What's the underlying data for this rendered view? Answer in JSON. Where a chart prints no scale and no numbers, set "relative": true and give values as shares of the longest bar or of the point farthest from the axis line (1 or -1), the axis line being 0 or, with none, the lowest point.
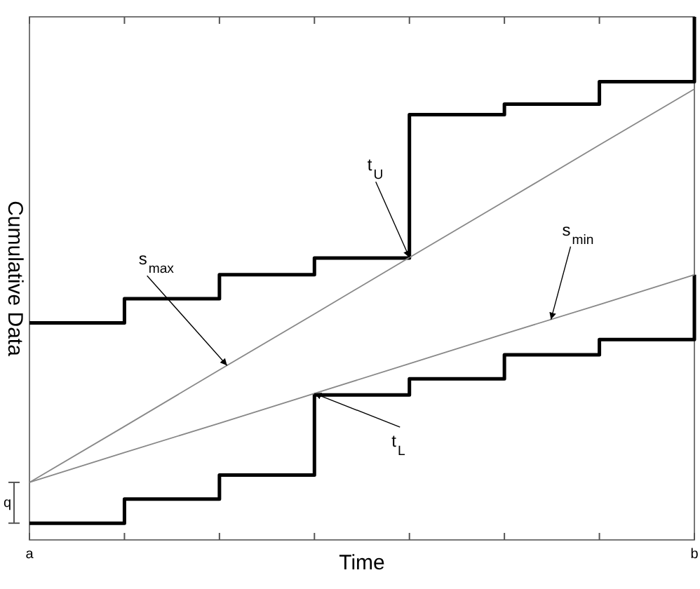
{
  "chart_data": {
    "type": "step",
    "relative": true,
    "xlabel": "Time",
    "ylabel": "Cumulative Data",
    "categories": [
      "a",
      null,
      null,
      null,
      null,
      null,
      null,
      "b"
    ],
    "line_style": "solid",
    "series": [
      {
        "color": "#000000",
        "values": [
          0.415,
          0.461,
          0.507,
          0.539,
          0.813,
          0.833,
          0.876,
          1
        ]
      },
      {
        "color": "#000000",
        "values": [
          0.032,
          0.078,
          0.124,
          0.277,
          0.308,
          0.354,
          0.383,
          0.507
        ]
      },
      {
        "type": "line",
        "color": "#888888",
        "values": [
          0.11,
          0.217,
          0.325,
          0.432,
          0.54,
          0.647,
          0.755,
          0.862
        ]
      },
      {
        "type": "line",
        "color": "#888888",
        "values": [
          0.11,
          0.167,
          0.223,
          0.28,
          0.337,
          0.394,
          0.45,
          0.507
        ]
      }
    ],
    "annotations": [
      "s$_{max}$",
      "t$_{U}$",
      "t$_{L}$",
      "s$_{min}$",
      "q"
    ]
  }
}
